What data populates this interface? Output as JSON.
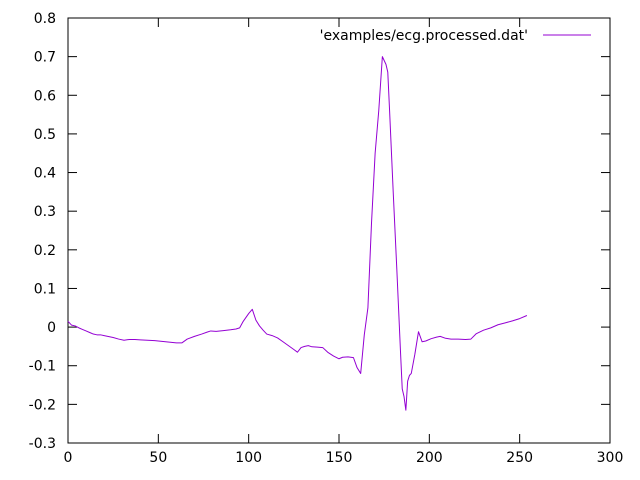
{
  "chart_data": {
    "type": "line",
    "title": "",
    "xlabel": "",
    "ylabel": "",
    "xlim": [
      0,
      300
    ],
    "ylim": [
      -0.3,
      0.8
    ],
    "xticks": [
      0,
      50,
      100,
      150,
      200,
      250,
      300
    ],
    "yticks": [
      -0.3,
      -0.2,
      -0.1,
      0,
      0.1,
      0.2,
      0.3,
      0.4,
      0.5,
      0.6,
      0.7,
      0.8
    ],
    "grid": false,
    "legend_position": "top-right",
    "series": [
      {
        "name": "'examples/ecg.processed.dat'",
        "color": "#9400d3",
        "points": [
          [
            0,
            0.015
          ],
          [
            2,
            0.005
          ],
          [
            4,
            0.003
          ],
          [
            6,
            -0.002
          ],
          [
            8,
            -0.006
          ],
          [
            10,
            -0.01
          ],
          [
            12,
            -0.014
          ],
          [
            14,
            -0.018
          ],
          [
            16,
            -0.02
          ],
          [
            18,
            -0.02
          ],
          [
            20,
            -0.022
          ],
          [
            22,
            -0.024
          ],
          [
            25,
            -0.027
          ],
          [
            28,
            -0.031
          ],
          [
            31,
            -0.034
          ],
          [
            34,
            -0.032
          ],
          [
            37,
            -0.032
          ],
          [
            40,
            -0.033
          ],
          [
            44,
            -0.034
          ],
          [
            48,
            -0.035
          ],
          [
            52,
            -0.037
          ],
          [
            56,
            -0.039
          ],
          [
            60,
            -0.041
          ],
          [
            63,
            -0.041
          ],
          [
            66,
            -0.031
          ],
          [
            70,
            -0.024
          ],
          [
            74,
            -0.018
          ],
          [
            77,
            -0.013
          ],
          [
            79,
            -0.01
          ],
          [
            82,
            -0.011
          ],
          [
            86,
            -0.009
          ],
          [
            90,
            -0.007
          ],
          [
            93,
            -0.005
          ],
          [
            95,
            -0.002
          ],
          [
            97,
            0.015
          ],
          [
            100,
            0.035
          ],
          [
            102,
            0.046
          ],
          [
            104,
            0.018
          ],
          [
            106,
            0.003
          ],
          [
            108,
            -0.008
          ],
          [
            110,
            -0.018
          ],
          [
            113,
            -0.022
          ],
          [
            116,
            -0.028
          ],
          [
            119,
            -0.038
          ],
          [
            122,
            -0.048
          ],
          [
            125,
            -0.058
          ],
          [
            127,
            -0.065
          ],
          [
            129,
            -0.053
          ],
          [
            131,
            -0.05
          ],
          [
            133,
            -0.048
          ],
          [
            135,
            -0.051
          ],
          [
            138,
            -0.052
          ],
          [
            141,
            -0.053
          ],
          [
            144,
            -0.066
          ],
          [
            147,
            -0.075
          ],
          [
            150,
            -0.082
          ],
          [
            152,
            -0.078
          ],
          [
            155,
            -0.077
          ],
          [
            158,
            -0.079
          ],
          [
            160,
            -0.105
          ],
          [
            162,
            -0.12
          ],
          [
            164,
            -0.02
          ],
          [
            166,
            0.05
          ],
          [
            168,
            0.27
          ],
          [
            170,
            0.45
          ],
          [
            172,
            0.56
          ],
          [
            174,
            0.7
          ],
          [
            175,
            0.69
          ],
          [
            176,
            0.68
          ],
          [
            177,
            0.66
          ],
          [
            178,
            0.56
          ],
          [
            180,
            0.35
          ],
          [
            182,
            0.15
          ],
          [
            184,
            -0.06
          ],
          [
            185,
            -0.16
          ],
          [
            186,
            -0.18
          ],
          [
            187,
            -0.215
          ],
          [
            188,
            -0.14
          ],
          [
            189,
            -0.125
          ],
          [
            190,
            -0.12
          ],
          [
            192,
            -0.07
          ],
          [
            194,
            -0.012
          ],
          [
            196,
            -0.038
          ],
          [
            198,
            -0.036
          ],
          [
            201,
            -0.03
          ],
          [
            204,
            -0.026
          ],
          [
            206,
            -0.024
          ],
          [
            209,
            -0.029
          ],
          [
            212,
            -0.031
          ],
          [
            216,
            -0.031
          ],
          [
            220,
            -0.032
          ],
          [
            223,
            -0.031
          ],
          [
            226,
            -0.017
          ],
          [
            230,
            -0.008
          ],
          [
            234,
            -0.002
          ],
          [
            238,
            0.006
          ],
          [
            242,
            0.011
          ],
          [
            246,
            0.016
          ],
          [
            250,
            0.022
          ],
          [
            254,
            0.03
          ]
        ]
      }
    ]
  }
}
